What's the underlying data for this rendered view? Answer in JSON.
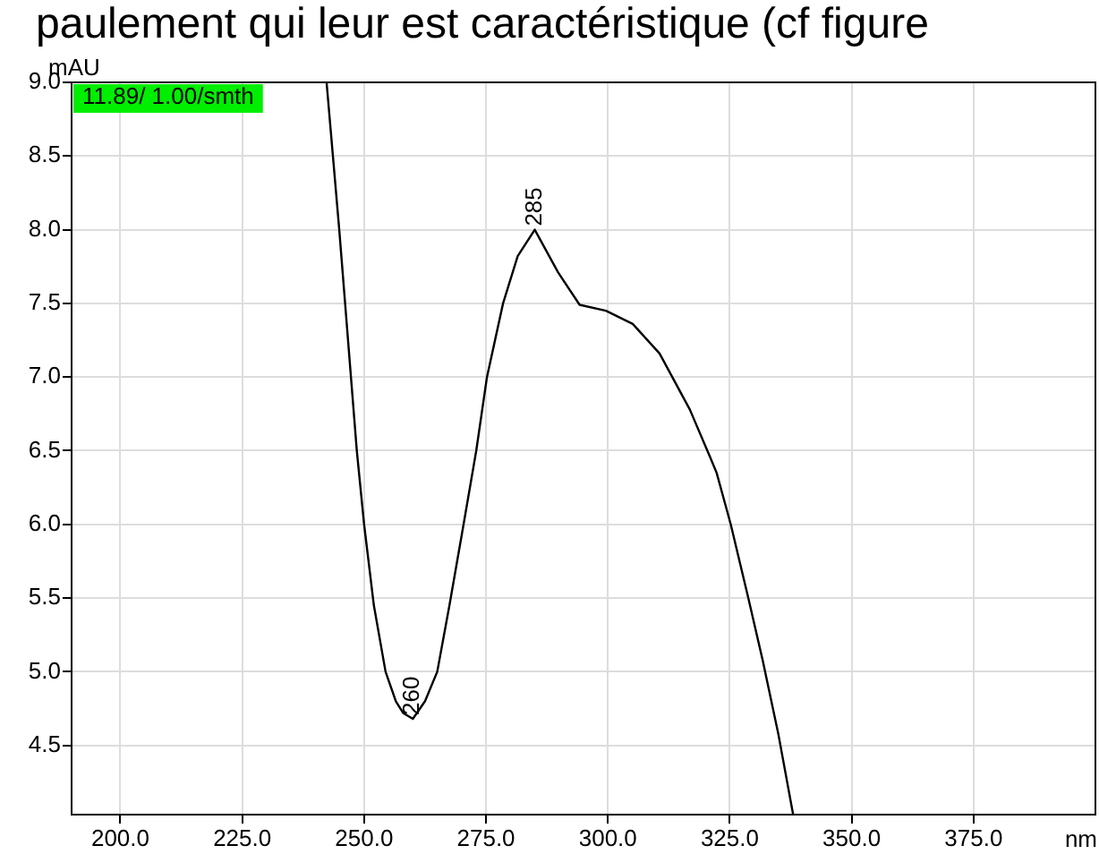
{
  "chart_data": {
    "type": "line",
    "title": "paulement qui leur est caractéristique (cf figure",
    "xlabel": "nm",
    "ylabel": "mAU",
    "series": [
      {
        "color": "#000000",
        "x": [
          242.3,
          244.9,
          248.5,
          250,
          252,
          254.4,
          256.5,
          258,
          260,
          262.5,
          265,
          267.5,
          270.4,
          273,
          275.2,
          278.5,
          281.5,
          285,
          289.8,
          294.2,
          299.6,
          305.1,
          310.6,
          316.8,
          320.8,
          322.3,
          325.2,
          328.8,
          331.8,
          335,
          338
        ],
        "values": [
          9.0,
          8.0,
          6.5,
          6.0,
          5.45,
          5.0,
          4.8,
          4.72,
          4.68,
          4.8,
          5.0,
          5.45,
          6.0,
          6.5,
          7.0,
          7.5,
          7.82,
          8.0,
          7.71,
          7.49,
          7.45,
          7.36,
          7.16,
          6.78,
          6.47,
          6.35,
          6.0,
          5.5,
          5.07,
          4.57,
          4.03
        ]
      }
    ],
    "xlim": [
      190,
      400
    ],
    "ylim": [
      4.03,
      9.0
    ],
    "xticks": [
      {
        "value": 200,
        "label": "200.0"
      },
      {
        "value": 225,
        "label": "225.0"
      },
      {
        "value": 250,
        "label": "250.0"
      },
      {
        "value": 275,
        "label": "275.0"
      },
      {
        "value": 300,
        "label": "300.0"
      },
      {
        "value": 325,
        "label": "325.0"
      },
      {
        "value": 350,
        "label": "350.0"
      },
      {
        "value": 375,
        "label": "375.0"
      }
    ],
    "yticks": [
      {
        "value": 4.5,
        "label": "4.5"
      },
      {
        "value": 5,
        "label": "5.0"
      },
      {
        "value": 5.5,
        "label": "5.5"
      },
      {
        "value": 6,
        "label": "6.0"
      },
      {
        "value": 6.5,
        "label": "6.5"
      },
      {
        "value": 7,
        "label": "7.0"
      },
      {
        "value": 7.5,
        "label": "7.5"
      },
      {
        "value": 8,
        "label": "8.0"
      },
      {
        "value": 8.5,
        "label": "8.5"
      },
      {
        "value": 9,
        "label": "9.0"
      }
    ],
    "grid": true,
    "legend": false,
    "marker": "none",
    "line_style": "solid",
    "annotations": [
      "11.89/ 1.00/smth",
      {
        "text": "285",
        "x": 285,
        "y": 8.0
      },
      {
        "text": "260",
        "x": 260,
        "y": 4.68
      }
    ]
  }
}
